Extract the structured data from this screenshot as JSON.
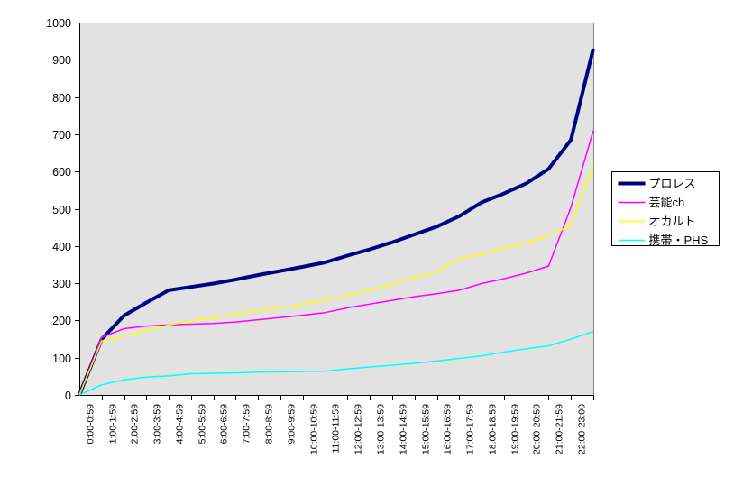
{
  "chart_data": {
    "type": "line",
    "title": "",
    "xlabel": "",
    "ylabel": "",
    "ylim": [
      0,
      1000
    ],
    "ytick_step": 100,
    "grid": false,
    "plot_bg": "#e2e2e2",
    "plot_border_color": "#858585",
    "axis_color": "#000000",
    "legend_position": "right",
    "legend_border_color": "#000000",
    "legend_bg": "#ffffff",
    "x_labels_rotated_degrees": -90,
    "starts_at_zero_on_axis": true,
    "categories": [
      "0:00-0:59",
      "1:00-1:59",
      "2:00-2:59",
      "3:00-3:59",
      "4:00-4:59",
      "5:00-5:59",
      "6:00-6:59",
      "7:00-7:59",
      "8:00-8:59",
      "9:00-9:59",
      "10:00-10:59",
      "11:00-11:59",
      "12:00-12:59",
      "13:00-13:59",
      "14:00-14:59",
      "15:00-15:59",
      "16:00-16:59",
      "17:00-17:59",
      "18:00-18:59",
      "19:00-19:59",
      "20:00-20:59",
      "21:00-21:59",
      "22:00-23:00"
    ],
    "series": [
      {
        "name": "プロレス",
        "color": "#000080",
        "line_width": 4,
        "values": [
          150,
          213,
          248,
          281,
          290,
          299,
          310,
          322,
          333,
          344,
          356,
          374,
          391,
          410,
          431,
          452,
          480,
          517,
          541,
          568,
          607,
          685,
          930
        ]
      },
      {
        "name": "芸能ch",
        "color": "#ff00ff",
        "line_width": 1.5,
        "values": [
          155,
          178,
          185,
          188,
          190,
          192,
          196,
          202,
          208,
          214,
          221,
          234,
          244,
          254,
          264,
          272,
          281,
          299,
          312,
          327,
          346,
          504,
          710
        ]
      },
      {
        "name": "オカルト",
        "color": "#ffff00",
        "line_width": 1.5,
        "values": [
          145,
          158,
          172,
          188,
          199,
          207,
          217,
          227,
          234,
          244,
          255,
          267,
          281,
          297,
          315,
          330,
          367,
          378,
          395,
          408,
          428,
          455,
          621
        ]
      },
      {
        "name": "携帯・PHS",
        "color": "#00ffff",
        "line_width": 1.5,
        "values": [
          27,
          41,
          48,
          51,
          57,
          58,
          59,
          61,
          62,
          63,
          64,
          70,
          75,
          80,
          85,
          91,
          98,
          105,
          115,
          124,
          132,
          150,
          171
        ]
      }
    ]
  }
}
